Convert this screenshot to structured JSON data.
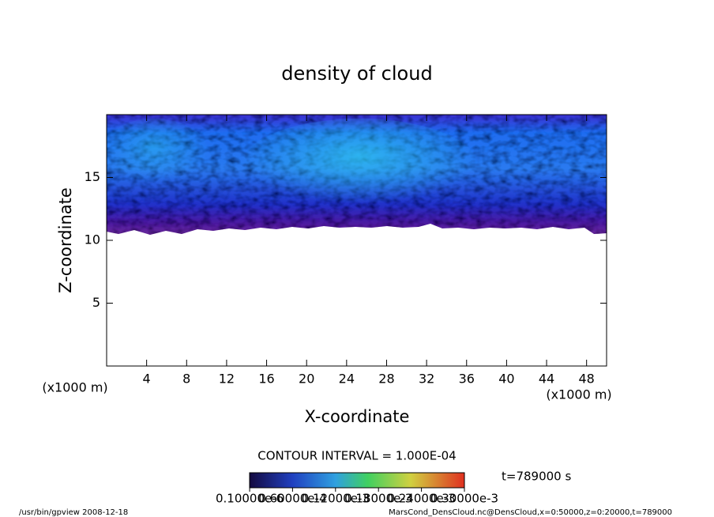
{
  "chart_data": {
    "type": "contour",
    "title": "density of cloud",
    "x_label": "X-coordinate",
    "y_label": "Z-coordinate",
    "x_unit": "(x1000 m)",
    "y_unit": "(x1000 m)",
    "xlim": [
      0,
      50
    ],
    "ylim": [
      0,
      20
    ],
    "xticks": [
      4,
      8,
      12,
      16,
      20,
      24,
      28,
      32,
      36,
      40,
      44,
      48
    ],
    "yticks": [
      5,
      10,
      15
    ],
    "contour_interval": "CONTOUR INTERVAL = 1.000E-04",
    "time_label": "t=789000 s",
    "colorbar": {
      "lim": [
        0,
        0.0003
      ],
      "ticks": [
        {
          "value": 1e-07,
          "label": "0.10000e-6"
        },
        {
          "value": 6e-05,
          "label": "0.60000e-4"
        },
        {
          "value": 0.00012,
          "label": "0.12000e-3"
        },
        {
          "value": 0.00018,
          "label": "0.18000e-3"
        },
        {
          "value": 0.00024,
          "label": "0.24000e-3"
        },
        {
          "value": 0.0003,
          "label": "0.30000e-3"
        }
      ]
    },
    "footer_left": "/usr/bin/gpview   2008-12-18",
    "footer_right": "MarsCond_DensCloud.nc@DensCloud,x=0:50000,z=0:20000,t=789000"
  }
}
